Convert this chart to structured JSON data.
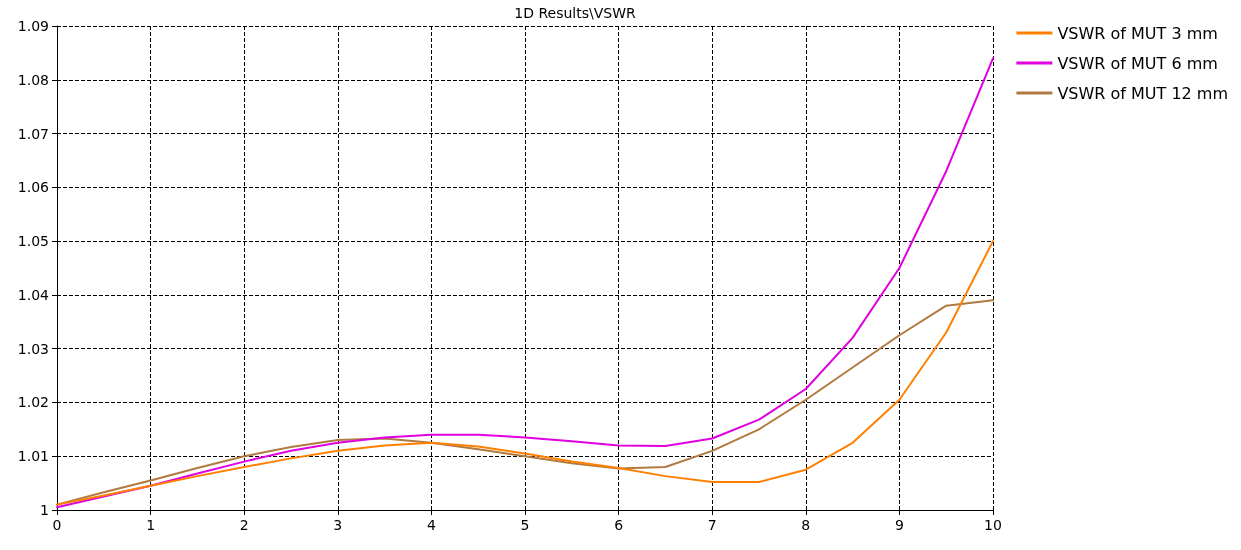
{
  "chart_data": {
    "type": "line",
    "title": "1D Results\\VSWR",
    "x": [
      0,
      0.5,
      1,
      1.5,
      2,
      2.5,
      3,
      3.5,
      4,
      4.5,
      5,
      5.5,
      6,
      6.5,
      7,
      7.5,
      8,
      8.5,
      9,
      9.5,
      10
    ],
    "series": [
      {
        "name": "VSWR of MUT 3 mm",
        "color": "#ff8000",
        "values": [
          1.001,
          1.0027,
          1.0045,
          1.0063,
          1.008,
          1.0096,
          1.011,
          1.012,
          1.0125,
          1.0118,
          1.0105,
          1.009,
          1.0078,
          1.0063,
          1.0052,
          1.0052,
          1.0075,
          1.0125,
          1.0205,
          1.033,
          1.05
        ]
      },
      {
        "name": "VSWR of MUT 6 mm",
        "color": "#e000e0",
        "values": [
          1.0005,
          1.0025,
          1.0045,
          1.0068,
          1.009,
          1.011,
          1.0125,
          1.0135,
          1.014,
          1.014,
          1.0135,
          1.0128,
          1.012,
          1.0119,
          1.0133,
          1.0168,
          1.0225,
          1.032,
          1.045,
          1.063,
          1.084
        ]
      },
      {
        "name": "VSWR of MUT 12 mm",
        "color": "#b07a40",
        "values": [
          1.001,
          1.0033,
          1.0055,
          1.0078,
          1.01,
          1.0117,
          1.013,
          1.0133,
          1.0125,
          1.0113,
          1.01,
          1.0087,
          1.0077,
          1.008,
          1.011,
          1.015,
          1.0205,
          1.0265,
          1.0325,
          1.038,
          1.039
        ]
      }
    ],
    "xlim": [
      0,
      10
    ],
    "xticks": [
      0,
      1,
      2,
      3,
      4,
      5,
      6,
      7,
      8,
      9,
      10
    ],
    "ylim": [
      1,
      1.09
    ],
    "yticks": [
      1,
      1.01,
      1.02,
      1.03,
      1.04,
      1.05,
      1.06,
      1.07,
      1.08,
      1.09
    ],
    "grid": true,
    "legend": "top right",
    "marker": "none",
    "line_style": "solid"
  }
}
